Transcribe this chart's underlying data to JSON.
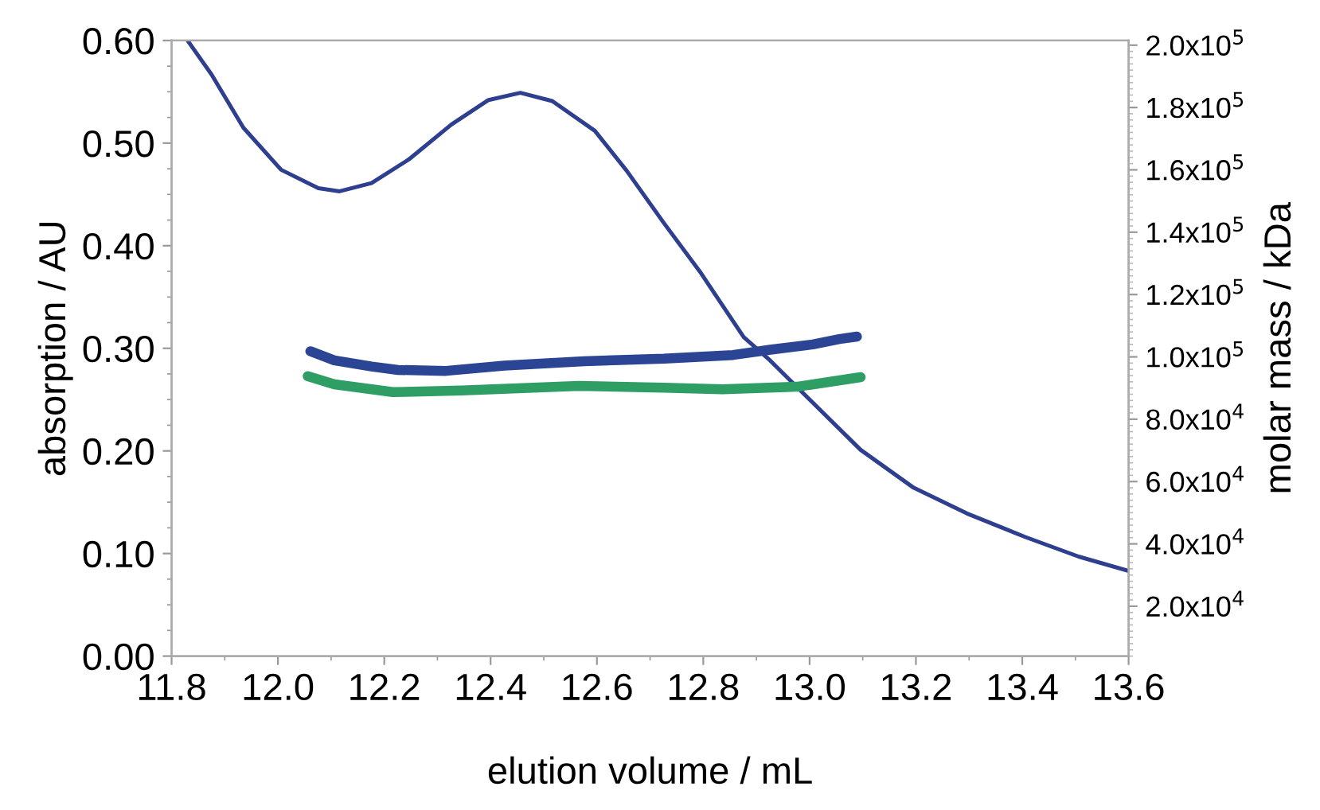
{
  "chart_data": {
    "type": "line",
    "xlabel": "elution volume / mL",
    "ylabel": "absorption / AU",
    "y2label": "molar mass / kDa",
    "xlim": [
      11.8,
      13.6
    ],
    "xticks": [
      {
        "value": 11.8,
        "label": "11.8"
      },
      {
        "value": 12.0,
        "label": "12.0"
      },
      {
        "value": 12.2,
        "label": "12.2"
      },
      {
        "value": 12.4,
        "label": "12.4"
      },
      {
        "value": 12.6,
        "label": "12.6"
      },
      {
        "value": 12.8,
        "label": "12.8"
      },
      {
        "value": 13.0,
        "label": "13.0"
      },
      {
        "value": 13.2,
        "label": "13.2"
      },
      {
        "value": 13.4,
        "label": "13.4"
      },
      {
        "value": 13.6,
        "label": "13.6"
      }
    ],
    "ylim": [
      0,
      0.6
    ],
    "yticks": [
      {
        "value": 0,
        "label": "0.00"
      },
      {
        "value": 0.1,
        "label": "0.10"
      },
      {
        "value": 0.2,
        "label": "0.20"
      },
      {
        "value": 0.3,
        "label": "0.30"
      },
      {
        "value": 0.4,
        "label": "0.40"
      },
      {
        "value": 0.5,
        "label": "0.50"
      },
      {
        "value": 0.6,
        "label": "0.60"
      }
    ],
    "y2lim": [
      4000,
      201500
    ],
    "y2ticks": [
      {
        "value": 20000,
        "label": "2.0x10$^{4}$"
      },
      {
        "value": 40000,
        "label": "4.0x10$^{4}$"
      },
      {
        "value": 60000,
        "label": "6.0x10$^{4}$"
      },
      {
        "value": 80000,
        "label": "8.0x10$^{4}$"
      },
      {
        "value": 100000,
        "label": "1.0x10$^{5}$"
      },
      {
        "value": 120000,
        "label": "1.2x10$^{5}$"
      },
      {
        "value": 140000,
        "label": "1.4x10$^{5}$"
      },
      {
        "value": 160000,
        "label": "1.6x10$^{5}$"
      },
      {
        "value": 180000,
        "label": "1.8x10$^{5}$"
      },
      {
        "value": 200000,
        "label": "2.0x10$^{5}$"
      }
    ],
    "grid": false,
    "marker": "none",
    "line_style": "solid",
    "series": [
      {
        "color": "#2e3f8f",
        "x": [
          11.83,
          11.875,
          11.935,
          12.006,
          12.076,
          12.116,
          12.176,
          12.246,
          12.326,
          12.396,
          12.456,
          12.516,
          12.596,
          12.656,
          12.726,
          12.796,
          12.876,
          12.926,
          13.006,
          13.096,
          13.196,
          13.296,
          13.406,
          13.506,
          13.6
        ],
        "values": [
          0.6,
          0.567,
          0.515,
          0.474,
          0.456,
          0.453,
          0.461,
          0.484,
          0.518,
          0.542,
          0.549,
          0.541,
          0.512,
          0.473,
          0.422,
          0.373,
          0.311,
          0.288,
          0.247,
          0.201,
          0.164,
          0.139,
          0.116,
          0.097,
          0.083
        ]
      },
      {
        "color": "#2b4594",
        "axis": "y2",
        "x": [
          12.061,
          12.106,
          12.176,
          12.226,
          12.316,
          12.426,
          12.576,
          12.726,
          12.856,
          12.926,
          13.006,
          13.056,
          13.089
        ],
        "values": [
          101800,
          98900,
          96900,
          95800,
          95500,
          97200,
          98600,
          99400,
          100600,
          102300,
          104000,
          105700,
          106500
        ]
      },
      {
        "color": "#2e9e64",
        "axis": "y2",
        "x": [
          12.056,
          12.106,
          12.216,
          12.346,
          12.566,
          12.726,
          12.836,
          12.976,
          13.096
        ],
        "values": [
          93800,
          91200,
          88700,
          89200,
          90700,
          90100,
          89600,
          90400,
          93500
        ]
      }
    ]
  }
}
